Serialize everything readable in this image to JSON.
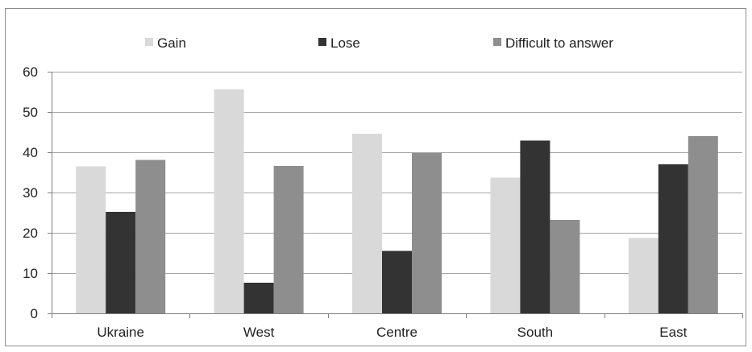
{
  "chart_data": {
    "type": "bar",
    "categories": [
      "Ukraine",
      "West",
      "Centre",
      "South",
      "East"
    ],
    "series": [
      {
        "name": "Gain",
        "values": [
          36.5,
          55.6,
          44.6,
          33.7,
          18.7
        ],
        "color": "#d9d9d9"
      },
      {
        "name": "Lose",
        "values": [
          25.2,
          7.6,
          15.5,
          42.9,
          37.0
        ],
        "color": "#333333"
      },
      {
        "name": "Difficult to answer",
        "values": [
          38.1,
          36.6,
          39.8,
          23.2,
          44.0
        ],
        "color": "#8e8e8e"
      }
    ],
    "yticks": [
      "0",
      "10",
      "20",
      "30",
      "40",
      "50",
      "60"
    ],
    "ylim": [
      0,
      60
    ],
    "grid": true,
    "legend_position": "top"
  }
}
